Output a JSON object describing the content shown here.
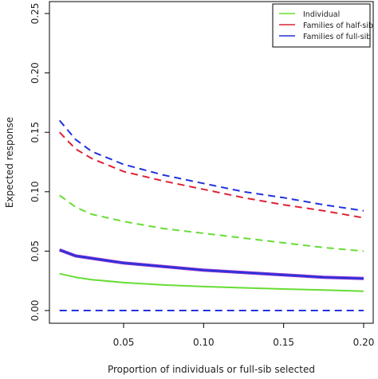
{
  "chart_data": {
    "type": "line",
    "title": "",
    "xlabel": "Proportion of individuals or full-sib selected",
    "ylabel": "Expected response",
    "xlim": [
      0.0,
      0.205
    ],
    "ylim": [
      0.0,
      0.25
    ],
    "xticks": [
      0.05,
      0.1,
      0.15,
      0.2
    ],
    "xtick_labels": [
      "0.05",
      "0.10",
      "0.15",
      "0.20"
    ],
    "yticks": [
      0.0,
      0.05,
      0.1,
      0.15,
      0.2,
      0.25
    ],
    "ytick_labels": [
      "0.00",
      "0.05",
      "0.10",
      "0.15",
      "0.20",
      "0.25"
    ],
    "grid": false,
    "legend_position": "top-right",
    "legend": [
      {
        "label": "Individual",
        "color": "#66dd33"
      },
      {
        "label": "Families of half-sib",
        "color": "#dd2233"
      },
      {
        "label": "Families of full-sib",
        "color": "#2233dd"
      }
    ],
    "x": [
      0.01,
      0.02,
      0.03,
      0.05,
      0.075,
      0.1,
      0.125,
      0.15,
      0.175,
      0.2
    ],
    "series": [
      {
        "color": "#66dd33",
        "style": "solid",
        "values": [
          0.031,
          0.028,
          0.026,
          0.0235,
          0.0215,
          0.0202,
          0.0191,
          0.0181,
          0.0172,
          0.0163
        ]
      },
      {
        "color": "#66dd33",
        "style": "dashed",
        "values": [
          0.097,
          0.087,
          0.081,
          0.075,
          0.069,
          0.065,
          0.061,
          0.057,
          0.053,
          0.05
        ]
      },
      {
        "color": "#dd2233",
        "style": "dashed",
        "values": [
          0.15,
          0.136,
          0.128,
          0.117,
          0.109,
          0.102,
          0.095,
          0.089,
          0.084,
          0.078
        ]
      },
      {
        "color": "#2233dd",
        "style": "dashed",
        "values": [
          0.16,
          0.144,
          0.134,
          0.123,
          0.114,
          0.107,
          0.1,
          0.095,
          0.089,
          0.084
        ]
      },
      {
        "color": "#8833cc",
        "style": "solid",
        "width": 4,
        "values": [
          0.051,
          0.046,
          0.044,
          0.04,
          0.037,
          0.034,
          0.032,
          0.03,
          0.028,
          0.027
        ]
      },
      {
        "color": "#2233dd",
        "style": "solid",
        "width": 2,
        "values": [
          0.051,
          0.046,
          0.044,
          0.04,
          0.037,
          0.034,
          0.032,
          0.03,
          0.028,
          0.027
        ]
      },
      {
        "color": "#2233dd",
        "style": "dashed",
        "values": [
          0.0,
          0.0,
          0.0,
          0.0,
          0.0,
          0.0,
          0.0,
          0.0,
          0.0,
          0.0
        ]
      }
    ]
  }
}
